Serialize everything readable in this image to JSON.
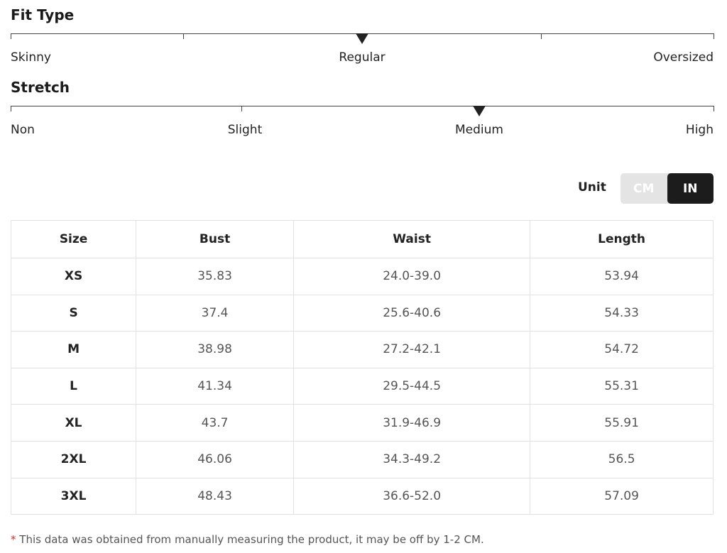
{
  "fit_type": {
    "title": "Fit Type",
    "labels": [
      "Skinny",
      "Regular",
      "Oversized"
    ],
    "selected": 1
  },
  "stretch": {
    "title": "Stretch",
    "labels": [
      "Non",
      "Slight",
      "Medium",
      "High"
    ],
    "selected": 2
  },
  "unit": {
    "label": "Unit",
    "options": [
      "CM",
      "IN"
    ],
    "selected": 1
  },
  "table": {
    "header": [
      "Size",
      "Bust",
      "Waist",
      "Length"
    ],
    "rows": [
      [
        "XS",
        "35.83",
        "24.0-39.0",
        "53.94"
      ],
      [
        "S",
        "37.4",
        "25.6-40.6",
        "54.33"
      ],
      [
        "M",
        "38.98",
        "27.2-42.1",
        "54.72"
      ],
      [
        "L",
        "41.34",
        "29.5-44.5",
        "55.31"
      ],
      [
        "XL",
        "43.7",
        "31.9-46.9",
        "55.91"
      ],
      [
        "2XL",
        "46.06",
        "34.3-49.2",
        "56.5"
      ],
      [
        "3XL",
        "48.43",
        "36.6-52.0",
        "57.09"
      ]
    ]
  },
  "footnote": {
    "mark": "*",
    "text": "This data was obtained from manually measuring the product, it may be off by 1-2 CM."
  }
}
